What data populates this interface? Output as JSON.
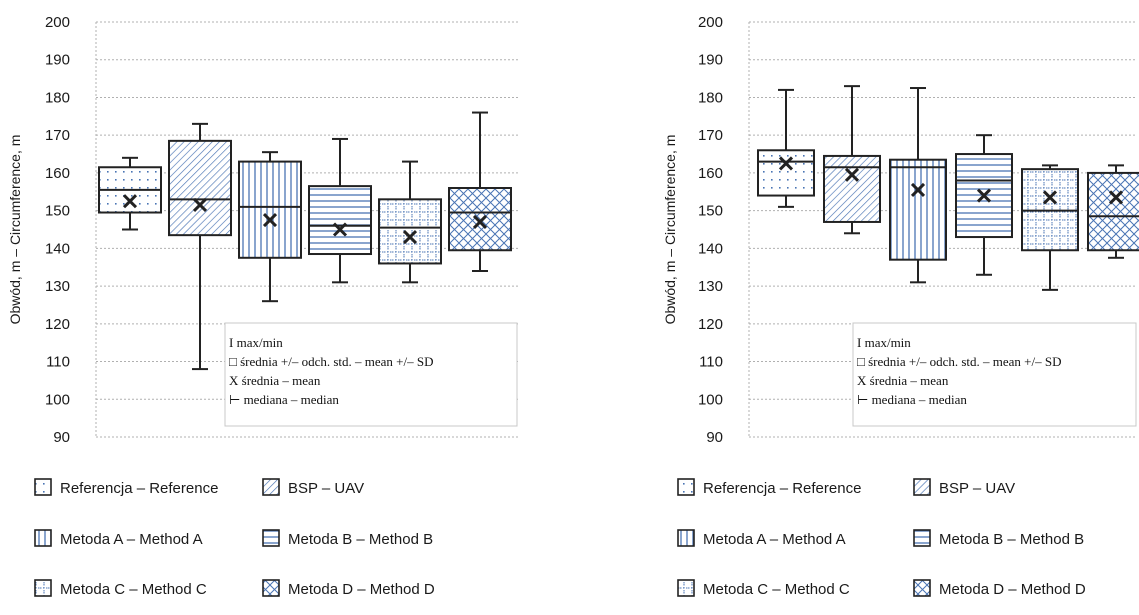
{
  "colors": {
    "box_stroke": "#222222",
    "pattern": "#4a74b4",
    "grid": "#b0b0b0",
    "axis_text": "#1a1a1a"
  },
  "chart_data": [
    {
      "type": "boxplot",
      "ylabel": "Obwód, m – Circumference, m",
      "ylim": [
        90,
        200
      ],
      "yticks": [
        "90",
        "100",
        "110",
        "120",
        "130",
        "140",
        "150",
        "160",
        "170",
        "180",
        "190",
        "200"
      ],
      "grid": true,
      "series": [
        {
          "name": "Referencja – Reference",
          "pattern": "dots",
          "min": 145,
          "q1": 149.5,
          "median": 155.5,
          "q3": 161.5,
          "max": 164,
          "mean": 152.5
        },
        {
          "name": "BSP – UAV",
          "pattern": "diag",
          "min": 108,
          "q1": 143.5,
          "median": 153,
          "q3": 168.5,
          "max": 173,
          "mean": 151.5
        },
        {
          "name": "Metoda A – Method A",
          "pattern": "vert",
          "min": 126,
          "q1": 137.5,
          "median": 151,
          "q3": 163,
          "max": 165.5,
          "mean": 147.5
        },
        {
          "name": "Metoda B – Method B",
          "pattern": "horiz",
          "min": 131,
          "q1": 138.5,
          "median": 146,
          "q3": 156.5,
          "max": 169,
          "mean": 145
        },
        {
          "name": "Metoda C – Method C",
          "pattern": "grid",
          "min": 131,
          "q1": 136,
          "median": 145.5,
          "q3": 153,
          "max": 163,
          "mean": 143
        },
        {
          "name": "Metoda D – Method D",
          "pattern": "cross",
          "min": 134,
          "q1": 139.5,
          "median": 149.5,
          "q3": 156,
          "max": 176,
          "mean": 147
        }
      ],
      "key": [
        "I  max/min",
        "□ średnia +/– odch. std. – mean +/– SD",
        "X średnia – mean",
        "⊢ mediana – median"
      ]
    },
    {
      "type": "boxplot",
      "ylabel": "Obwód, m – Circumference, m",
      "ylim": [
        90,
        200
      ],
      "yticks": [
        "90",
        "100",
        "110",
        "120",
        "130",
        "140",
        "150",
        "160",
        "170",
        "180",
        "190",
        "200"
      ],
      "grid": true,
      "series": [
        {
          "name": "Referencja – Reference",
          "pattern": "dots",
          "min": 151,
          "q1": 154,
          "median": 163,
          "q3": 166,
          "max": 182,
          "mean": 162.5
        },
        {
          "name": "BSP – UAV",
          "pattern": "diag",
          "min": 144,
          "q1": 147,
          "median": 161.5,
          "q3": 164.5,
          "max": 183,
          "mean": 159.5
        },
        {
          "name": "Metoda A – Method A",
          "pattern": "vert",
          "min": 131,
          "q1": 137,
          "median": 161.5,
          "q3": 163.5,
          "max": 182.5,
          "mean": 155.5
        },
        {
          "name": "Metoda B – Method B",
          "pattern": "horiz",
          "min": 133,
          "q1": 143,
          "median": 158,
          "q3": 165,
          "max": 170,
          "mean": 154
        },
        {
          "name": "Metoda C – Method C",
          "pattern": "grid",
          "min": 129,
          "q1": 139.5,
          "median": 150,
          "q3": 161,
          "max": 162,
          "mean": 153.5
        },
        {
          "name": "Metoda D – Method D",
          "pattern": "cross",
          "min": 137.5,
          "q1": 139.5,
          "median": 148.5,
          "q3": 160,
          "max": 162,
          "mean": 153.5
        }
      ],
      "key": [
        "I  max/min",
        "□ średnia +/– odch. std. – mean +/– SD",
        "X średnia – mean",
        "⊢ mediana – median"
      ]
    }
  ]
}
